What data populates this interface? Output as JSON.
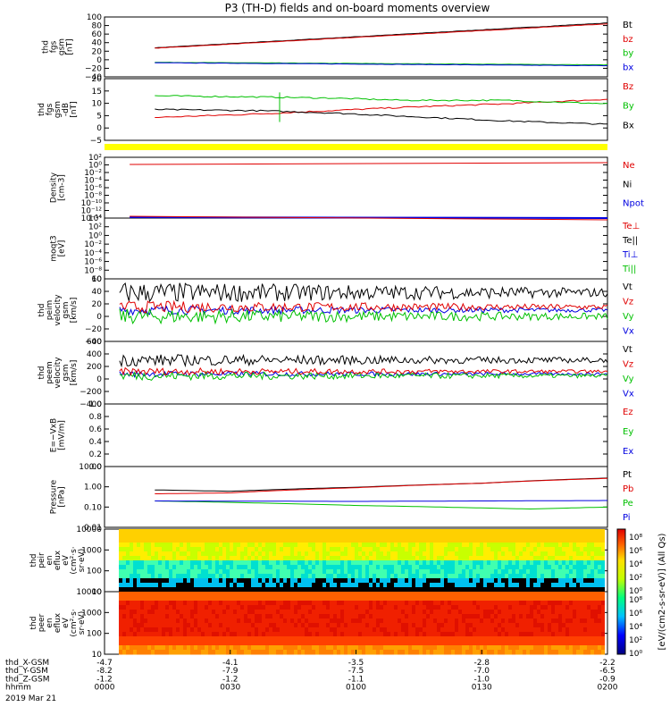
{
  "chart_data": [
    {
      "type": "line",
      "title": "P3 (TH-D) fields and on-board moments overview",
      "ylabel": [
        "thd",
        "fgs",
        "gsm",
        "[nT]"
      ],
      "yticks": [
        "100",
        "80",
        "60",
        "40",
        "20",
        "0",
        "−20",
        "−40"
      ],
      "ylim": [
        -40,
        100
      ],
      "series": [
        {
          "name": "Bt",
          "color": "#000000",
          "x": [
            0.1,
            1.0
          ],
          "y": [
            28,
            86
          ]
        },
        {
          "name": "bz",
          "color": "#e00000",
          "x": [
            0.1,
            1.0
          ],
          "y": [
            27,
            84
          ]
        },
        {
          "name": "by",
          "color": "#00c000",
          "x": [
            0.1,
            1.0
          ],
          "y": [
            -6,
            -12
          ]
        },
        {
          "name": "bx",
          "color": "#0000e0",
          "x": [
            0.1,
            1.0
          ],
          "y": [
            -7,
            -14
          ]
        }
      ]
    },
    {
      "type": "line",
      "ylabel": [
        "thd",
        "fgs",
        "gsm",
        "-dB",
        "[nT]"
      ],
      "yticks": [
        "20",
        "15",
        "10",
        "5",
        "0",
        "−5"
      ],
      "ylim": [
        -7,
        20
      ],
      "series": [
        {
          "name": "Bz",
          "color": "#e00000",
          "x": [
            0.1,
            0.3,
            0.45,
            0.6,
            0.8,
            1.0
          ],
          "y": [
            3,
            4.5,
            6,
            7.5,
            9,
            11
          ]
        },
        {
          "name": "By",
          "color": "#00c000",
          "x": [
            0.1,
            0.3,
            0.45,
            0.6,
            0.8,
            1.0
          ],
          "y": [
            12.5,
            12,
            11.5,
            10.5,
            10.5,
            9
          ]
        },
        {
          "name": "Bx",
          "color": "#000000",
          "x": [
            0.1,
            0.3,
            0.45,
            0.6,
            0.8,
            1.0
          ],
          "y": [
            6.5,
            6,
            5,
            3.5,
            1.5,
            0
          ]
        }
      ]
    },
    {
      "type": "line",
      "ylabel": [
        "Density",
        "[cm-3]"
      ],
      "yticks": [
        "10²",
        "10⁰",
        "10⁻²",
        "10⁻⁴",
        "10⁻⁶",
        "10⁻⁸",
        "10⁻¹⁰",
        "10⁻¹²",
        "10⁻¹⁴"
      ],
      "legend": [
        "Ne",
        "Ni",
        "Npot"
      ],
      "legend_colors": [
        "#e00000",
        "#000000",
        "#0000e0"
      ]
    },
    {
      "type": "line",
      "ylabel": [
        "moqt3",
        "[eV]"
      ],
      "yticks": [
        "10⁴",
        "10²",
        "10⁰",
        "10⁻²",
        "10⁻⁴",
        "10⁻⁶",
        "10⁻⁸",
        "10"
      ],
      "legend": [
        "Te⊥",
        "Te||",
        "Ti⊥",
        "Ti||"
      ],
      "legend_colors": [
        "#e00000",
        "#000000",
        "#0000e0",
        "#00c000"
      ]
    },
    {
      "type": "line",
      "ylabel": [
        "thd",
        "peim",
        "velocity",
        "gsm",
        "[km/s]"
      ],
      "yticks": [
        "60",
        "40",
        "20",
        "0",
        "−20",
        "−40"
      ],
      "legend": [
        "Vt",
        "Vz",
        "Vy",
        "Vx"
      ],
      "legend_colors": [
        "#000000",
        "#e00000",
        "#00c000",
        "#0000e0"
      ]
    },
    {
      "type": "line",
      "ylabel": [
        "thd",
        "peem",
        "velocity",
        "gsm",
        "[km/s]"
      ],
      "yticks": [
        "600",
        "400",
        "200",
        "0",
        "−200",
        "−400"
      ],
      "legend": [
        "Vt",
        "Vz",
        "Vy",
        "Vx"
      ],
      "legend_colors": [
        "#000000",
        "#e00000",
        "#00c000",
        "#0000e0"
      ]
    },
    {
      "type": "line",
      "ylabel": [
        "E=−VxB",
        "[mV/m]"
      ],
      "yticks": [
        "1.0",
        "0.8",
        "0.6",
        "0.4",
        "0.2",
        "0.0"
      ],
      "legend": [
        "Ez",
        "Ey",
        "Ex"
      ],
      "legend_colors": [
        "#e00000",
        "#00c000",
        "#0000e0"
      ]
    },
    {
      "type": "line",
      "ylabel": [
        "Pressure",
        "[nPa]"
      ],
      "yticks": [
        "10.00",
        "1.00",
        "0.10",
        "0.01"
      ],
      "log": true,
      "series": [
        {
          "name": "Pt",
          "color": "#000000",
          "x": [
            0.1,
            0.25,
            0.5,
            0.75,
            1.0
          ],
          "y": [
            0.7,
            0.6,
            0.95,
            1.5,
            2.7
          ]
        },
        {
          "name": "Pb",
          "color": "#e00000",
          "x": [
            0.1,
            0.25,
            0.5,
            0.75,
            1.0
          ],
          "y": [
            0.45,
            0.5,
            0.9,
            1.5,
            2.6
          ]
        },
        {
          "name": "Pe",
          "color": "#00c000",
          "x": [
            0.1,
            0.25,
            0.5,
            0.75,
            0.85,
            1.0
          ],
          "y": [
            0.2,
            0.17,
            0.12,
            0.09,
            0.08,
            0.1
          ]
        },
        {
          "name": "Pi",
          "color": "#0000e0",
          "x": [
            0.1,
            0.5,
            1.0
          ],
          "y": [
            0.2,
            0.19,
            0.21
          ]
        }
      ]
    },
    {
      "type": "heatmap",
      "ylabel": [
        "thd",
        "peir",
        "en",
        "eflux",
        "eV",
        "(cm²·s·",
        "sr·eV)"
      ],
      "yticks": [
        "10000",
        "1000",
        "100",
        "10"
      ],
      "cbticks": [
        "10⁸",
        "10⁶",
        "10⁴",
        "10²",
        "10⁰"
      ]
    },
    {
      "type": "heatmap",
      "ylabel": [
        "thd",
        "peer",
        "en",
        "eflux",
        "eV",
        "(cm²·s·",
        "sr·eV)"
      ],
      "yticks": [
        "10000",
        "1000",
        "100",
        "10"
      ],
      "cbticks": [
        "10⁸",
        "10⁶",
        "10⁴",
        "10²",
        "10⁰"
      ],
      "cblabel": "[eV/(cm2-s-sr-eV)] (All Qs)"
    }
  ],
  "xaxis": {
    "rows": [
      {
        "label": "thd_X-GSM",
        "values": [
          "-4.7",
          "-4.1",
          "-3.5",
          "-2.8",
          "-2.2"
        ]
      },
      {
        "label": "thd_Y-GSM",
        "values": [
          "-8.2",
          "-7.9",
          "-7.5",
          "-7.0",
          "-6.5"
        ]
      },
      {
        "label": "thd_Z-GSM",
        "values": [
          "-1.2",
          "-1.2",
          "-1.1",
          "-1.0",
          "-0.9"
        ]
      },
      {
        "label": "hhmm",
        "values": [
          "0000",
          "0030",
          "0100",
          "0130",
          "0200"
        ]
      }
    ],
    "date": "2019 Mar 21"
  },
  "colors": {
    "bar_yellow": "#ffff00"
  }
}
